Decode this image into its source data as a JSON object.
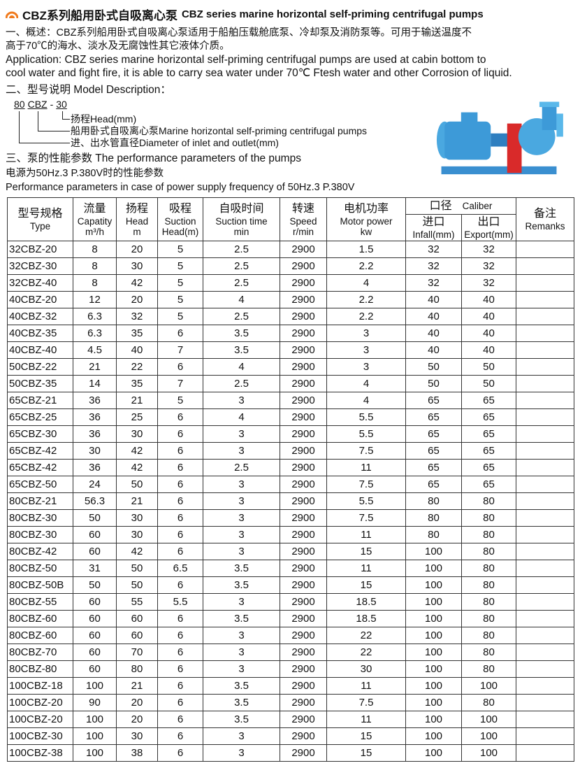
{
  "title": {
    "cn": "CBZ系列船用卧式自吸离心泵",
    "en": "CBZ series marine horizontal self-priming centrifugal pumps",
    "logo": "arch-logo-icon",
    "accent": "#f07a1c"
  },
  "overview": {
    "line1": "一、概述：CBZ系列船用卧式自吸离心泵适用于船舶压载舱底泵、冷却泵及消防泵等。可用于输送温度不",
    "line2": "高于70℃的海水、淡水及无腐蚀性其它液体介质。"
  },
  "application": {
    "line1": "Application:  CBZ series marine horizontal self-priming centrifugal pumps are used at cabin bottom to",
    "line2": "cool water and fight fire, it is able to carry sea water under 70℃ Ftesh water and other Corrosion of liquid."
  },
  "model": {
    "heading": "二、型号说明 Model Description：",
    "code_a": "80",
    "code_b": "CBZ",
    "code_sep": "-",
    "code_c": "30",
    "head": "扬程Head(mm)",
    "pump_type": "船用卧式自吸离心泵Marine horizontal self-priming centrifugal pumps",
    "diameter": "进、出水管直径Diameter of inlet and outlet(mm)"
  },
  "perf": {
    "heading": "三、泵的性能参数 The performance parameters of the pumps",
    "sub_cn": "电源为50Hz.3 P.380V时的性能参数",
    "sub_en": "Performance parameters in case of power supply frequency of 50Hz.3 P.380V"
  },
  "table": {
    "headers": {
      "type": {
        "cn": "型号规格",
        "en": "Type"
      },
      "capacity": {
        "cn": "流量",
        "en": "Capatity",
        "unit": "m³/h"
      },
      "head": {
        "cn": "扬程",
        "en": "Head",
        "unit": "m"
      },
      "suction": {
        "cn": "吸程",
        "en": "Suction",
        "unit": "Head(m)"
      },
      "time": {
        "cn": "自吸时间",
        "en": "Suction time",
        "unit": "min"
      },
      "speed": {
        "cn": "转速",
        "en": "Speed",
        "unit": "r/min"
      },
      "power": {
        "cn": "电机功率",
        "en": "Motor power",
        "unit": "kw"
      },
      "caliber": {
        "cn": "口径",
        "en": "Caliber"
      },
      "infall": {
        "cn": "进口",
        "en": "Infall(mm)"
      },
      "export": {
        "cn": "出口",
        "en": "Export(mm)"
      },
      "remarks": {
        "cn": "备注",
        "en": "Remanks"
      }
    },
    "rows": [
      [
        "32CBZ-20",
        "8",
        "20",
        "5",
        "2.5",
        "2900",
        "1.5",
        "32",
        "32"
      ],
      [
        "32CBZ-30",
        "8",
        "30",
        "5",
        "2.5",
        "2900",
        "2.2",
        "32",
        "32"
      ],
      [
        "32CBZ-40",
        "8",
        "42",
        "5",
        "2.5",
        "2900",
        "4",
        "32",
        "32"
      ],
      [
        "40CBZ-20",
        "12",
        "20",
        "5",
        "4",
        "2900",
        "2.2",
        "40",
        "40"
      ],
      [
        "40CBZ-32",
        "6.3",
        "32",
        "5",
        "2.5",
        "2900",
        "2.2",
        "40",
        "40"
      ],
      [
        "40CBZ-35",
        "6.3",
        "35",
        "6",
        "3.5",
        "2900",
        "3",
        "40",
        "40"
      ],
      [
        "40CBZ-40",
        "4.5",
        "40",
        "7",
        "3.5",
        "2900",
        "3",
        "40",
        "40"
      ],
      [
        "50CBZ-22",
        "21",
        "22",
        "6",
        "4",
        "2900",
        "3",
        "50",
        "50"
      ],
      [
        "50CBZ-35",
        "14",
        "35",
        "7",
        "2.5",
        "2900",
        "4",
        "50",
        "50"
      ],
      [
        "65CBZ-21",
        "36",
        "21",
        "5",
        "3",
        "2900",
        "4",
        "65",
        "65"
      ],
      [
        "65CBZ-25",
        "36",
        "25",
        "6",
        "4",
        "2900",
        "5.5",
        "65",
        "65"
      ],
      [
        "65CBZ-30",
        "36",
        "30",
        "6",
        "3",
        "2900",
        "5.5",
        "65",
        "65"
      ],
      [
        "65CBZ-42",
        "30",
        "42",
        "6",
        "3",
        "2900",
        "7.5",
        "65",
        "65"
      ],
      [
        "65CBZ-42",
        "36",
        "42",
        "6",
        "2.5",
        "2900",
        "11",
        "65",
        "65"
      ],
      [
        "65CBZ-50",
        "24",
        "50",
        "6",
        "3",
        "2900",
        "7.5",
        "65",
        "65"
      ],
      [
        "80CBZ-21",
        "56.3",
        "21",
        "6",
        "3",
        "2900",
        "5.5",
        "80",
        "80"
      ],
      [
        "80CBZ-30",
        "50",
        "30",
        "6",
        "3",
        "2900",
        "7.5",
        "80",
        "80"
      ],
      [
        "80CBZ-30",
        "60",
        "30",
        "6",
        "3",
        "2900",
        "11",
        "80",
        "80"
      ],
      [
        "80CBZ-42",
        "60",
        "42",
        "6",
        "3",
        "2900",
        "15",
        "100",
        "80"
      ],
      [
        "80CBZ-50",
        "31",
        "50",
        "6.5",
        "3.5",
        "2900",
        "11",
        "100",
        "80"
      ],
      [
        "80CBZ-50B",
        "50",
        "50",
        "6",
        "3.5",
        "2900",
        "15",
        "100",
        "80"
      ],
      [
        "80CBZ-55",
        "60",
        "55",
        "5.5",
        "3",
        "2900",
        "18.5",
        "100",
        "80"
      ],
      [
        "80CBZ-60",
        "60",
        "60",
        "6",
        "3.5",
        "2900",
        "18.5",
        "100",
        "80"
      ],
      [
        "80CBZ-60",
        "60",
        "60",
        "6",
        "3",
        "2900",
        "22",
        "100",
        "80"
      ],
      [
        "80CBZ-70",
        "60",
        "70",
        "6",
        "3",
        "2900",
        "22",
        "100",
        "80"
      ],
      [
        "80CBZ-80",
        "60",
        "80",
        "6",
        "3",
        "2900",
        "30",
        "100",
        "80"
      ],
      [
        "100CBZ-18",
        "100",
        "21",
        "6",
        "3.5",
        "2900",
        "11",
        "100",
        "100"
      ],
      [
        "100CBZ-20",
        "90",
        "20",
        "6",
        "3.5",
        "2900",
        "7.5",
        "100",
        "80"
      ],
      [
        "100CBZ-20",
        "100",
        "20",
        "6",
        "3.5",
        "2900",
        "11",
        "100",
        "100"
      ],
      [
        "100CBZ-30",
        "100",
        "30",
        "6",
        "3",
        "2900",
        "15",
        "100",
        "100"
      ],
      [
        "100CBZ-38",
        "100",
        "38",
        "6",
        "3",
        "2900",
        "15",
        "100",
        "100"
      ]
    ]
  }
}
